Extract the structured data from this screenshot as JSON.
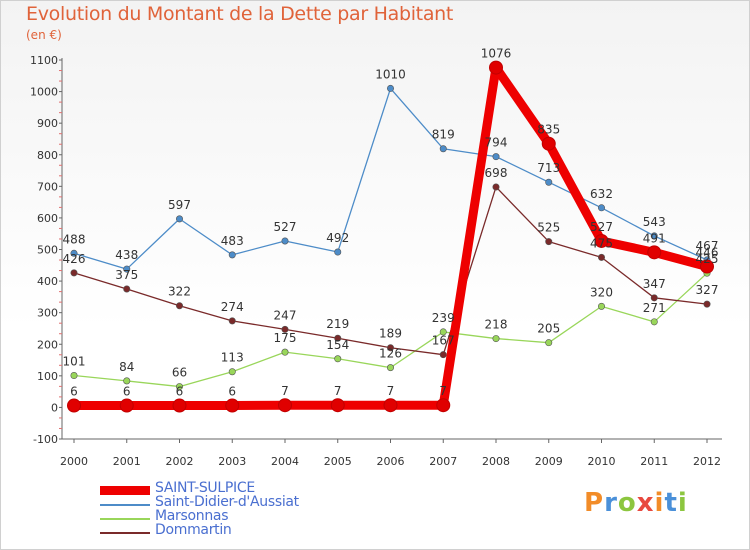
{
  "header": {
    "title": "Evolution du Montant de la Dette par Habitant",
    "subtitle": "(en €)"
  },
  "logo": {
    "text": "Proxiti",
    "colors": [
      "#f28c28",
      "#4a90d9",
      "#8cc63f",
      "#e8493f"
    ]
  },
  "chart_data": {
    "type": "line",
    "title": "Evolution du Montant de la Dette par Habitant",
    "ylabel": "(en €)",
    "xlabel": "",
    "ylim": [
      -100,
      1100
    ],
    "yticks": [
      -100,
      0,
      100,
      200,
      300,
      400,
      500,
      600,
      700,
      800,
      900,
      1000,
      1100
    ],
    "categories": [
      "2000",
      "2001",
      "2002",
      "2003",
      "2004",
      "2005",
      "2006",
      "2007",
      "2008",
      "2009",
      "2010",
      "2011",
      "2012"
    ],
    "grid": false,
    "legend": "bottom-left",
    "series": [
      {
        "name": "SAINT-SULPICE",
        "color": "#ee0000",
        "values": [
          6,
          6,
          6,
          6,
          7,
          7,
          7,
          7,
          1076,
          835,
          527,
          491,
          446
        ],
        "labels": [
          "6",
          "6",
          "6",
          "6",
          "7",
          "7",
          "7",
          "7",
          "1076",
          "835",
          "527",
          "491",
          "446"
        ]
      },
      {
        "name": "Saint-Didier-d'Aussiat",
        "color": "#4d8cc8",
        "values": [
          488,
          438,
          597,
          483,
          527,
          492,
          1010,
          819,
          794,
          713,
          632,
          543,
          467
        ],
        "labels": [
          "488",
          "438",
          "597",
          "483",
          "527",
          "492",
          "1010",
          "819",
          "794",
          "713",
          "632",
          "543",
          "467"
        ]
      },
      {
        "name": "Marsonnas",
        "color": "#99d65a",
        "values": [
          101,
          84,
          66,
          113,
          175,
          154,
          126,
          239,
          218,
          205,
          320,
          271,
          425
        ],
        "labels": [
          "101",
          "84",
          "66",
          "113",
          "175",
          "154",
          "126",
          "239",
          "218",
          "205",
          "320",
          "271",
          "425"
        ]
      },
      {
        "name": "Dommartin",
        "color": "#7a2a2a",
        "values": [
          426,
          375,
          322,
          274,
          247,
          219,
          189,
          167,
          698,
          525,
          475,
          347,
          327
        ],
        "labels": [
          "426",
          "375",
          "322",
          "274",
          "247",
          "219",
          "189",
          "167",
          "698",
          "525",
          "475",
          "347",
          "327"
        ]
      }
    ]
  }
}
